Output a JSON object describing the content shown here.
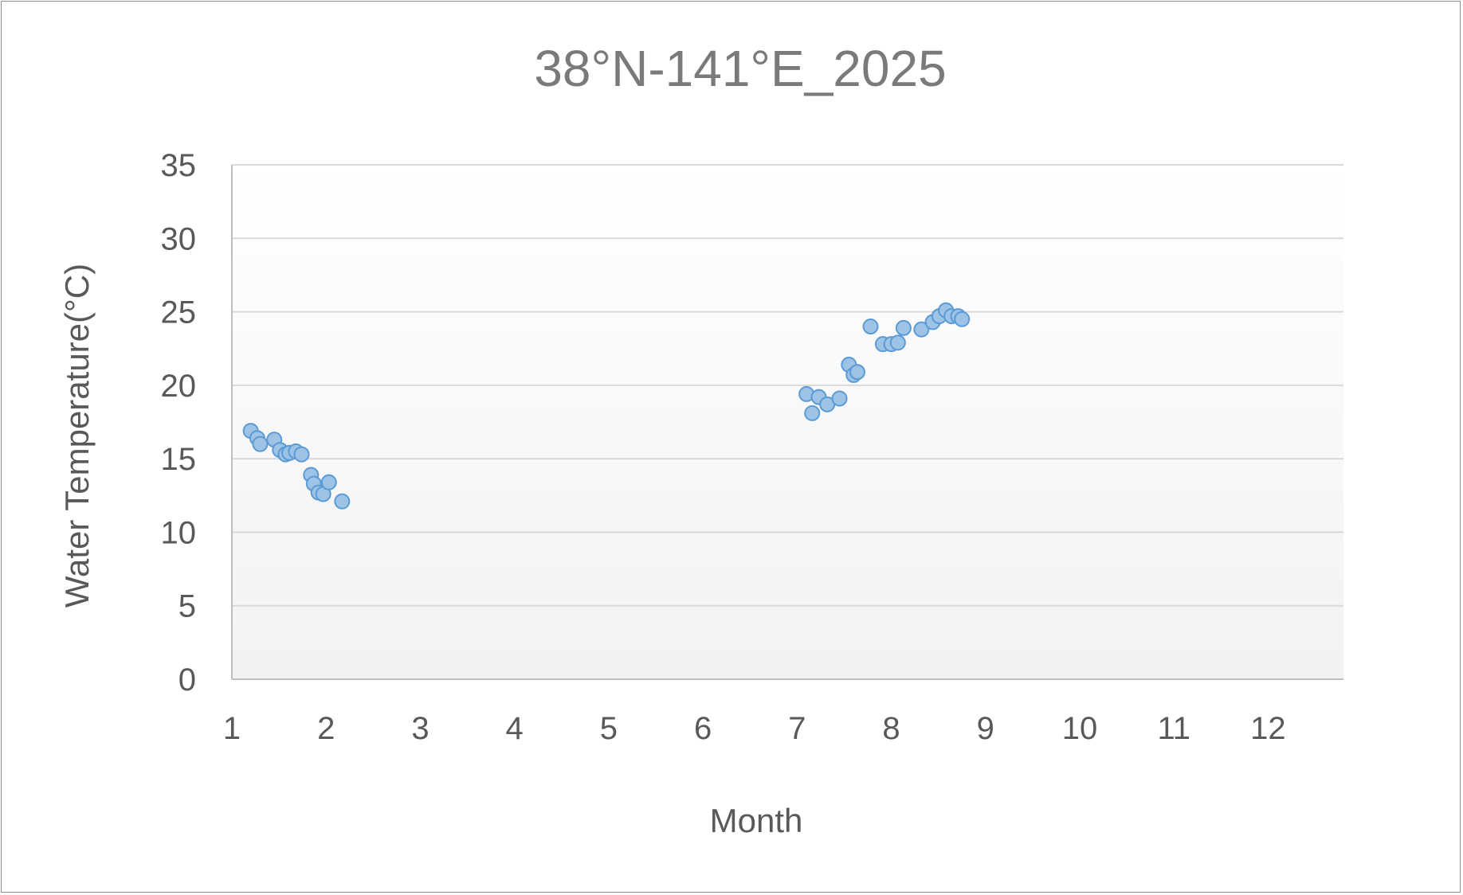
{
  "chart_data": {
    "type": "scatter",
    "title": "38°N-141°E_2025",
    "xlabel": "Month",
    "ylabel": "Water Temperature(°C)",
    "xlim": [
      1,
      12.8
    ],
    "ylim": [
      0,
      35
    ],
    "xticks": [
      "1",
      "2",
      "3",
      "4",
      "5",
      "6",
      "7",
      "8",
      "9",
      "10",
      "11",
      "12"
    ],
    "yticks": [
      "0",
      "5",
      "10",
      "15",
      "20",
      "25",
      "30",
      "35"
    ],
    "grid": "horizontal",
    "legend": "none",
    "marker_color": "#9dc3e6",
    "marker_edge_color": "#5b9bd5",
    "series": [
      {
        "x": [
          1.2,
          1.27,
          1.3,
          1.45,
          1.51,
          1.57,
          1.61,
          1.68,
          1.74,
          1.84,
          1.87,
          1.92,
          1.97,
          2.03,
          2.17,
          7.1,
          7.16,
          7.23,
          7.32,
          7.45,
          7.55,
          7.6,
          7.64,
          7.78,
          7.91,
          8.0,
          8.07,
          8.13,
          8.32,
          8.44,
          8.51,
          8.58,
          8.64,
          8.71,
          8.75
        ],
        "y": [
          16.9,
          16.4,
          16.0,
          16.3,
          15.6,
          15.3,
          15.4,
          15.5,
          15.3,
          13.9,
          13.3,
          12.7,
          12.6,
          13.4,
          12.1,
          19.4,
          18.1,
          19.2,
          18.7,
          19.1,
          21.4,
          20.7,
          20.9,
          24.0,
          22.8,
          22.8,
          22.9,
          23.9,
          23.8,
          24.3,
          24.7,
          25.1,
          24.7,
          24.7,
          24.5
        ]
      }
    ]
  }
}
